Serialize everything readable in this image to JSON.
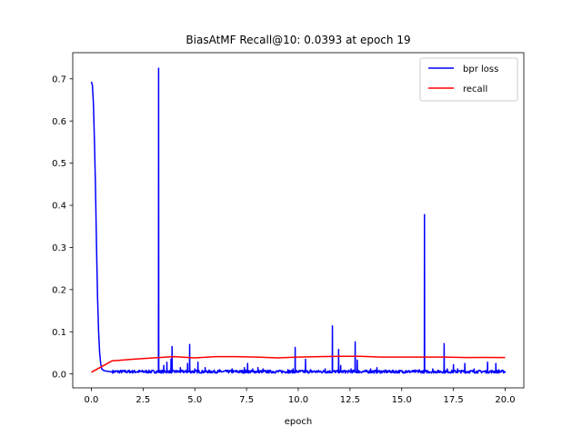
{
  "chart_data": {
    "type": "line",
    "title": "BiasAtMF Recall@10: 0.0393 at epoch 19",
    "xlabel": "epoch",
    "ylabel": "",
    "xlim": [
      -0.9,
      20.9
    ],
    "ylim": [
      -0.033,
      0.762
    ],
    "xticks": [
      0.0,
      2.5,
      5.0,
      7.5,
      10.0,
      12.5,
      15.0,
      17.5,
      20.0
    ],
    "xtick_labels": [
      "0.0",
      "2.5",
      "5.0",
      "7.5",
      "10.0",
      "12.5",
      "15.0",
      "17.5",
      "20.0"
    ],
    "yticks": [
      0.0,
      0.1,
      0.2,
      0.3,
      0.4,
      0.5,
      0.6,
      0.7
    ],
    "ytick_labels": [
      "0.0",
      "0.1",
      "0.2",
      "0.3",
      "0.4",
      "0.5",
      "0.6",
      "0.7"
    ],
    "grid": false,
    "legend_position": "top-right",
    "series": [
      {
        "name": "bpr loss",
        "color": "#0000ff",
        "baseline": 0.005,
        "x": [
          0.0,
          0.05,
          0.1,
          0.15,
          0.2,
          0.25,
          0.3,
          0.35,
          0.4,
          0.45,
          0.5,
          0.6,
          0.8,
          1.0
        ],
        "y": [
          0.693,
          0.685,
          0.64,
          0.55,
          0.44,
          0.3,
          0.18,
          0.1,
          0.05,
          0.025,
          0.012,
          0.008,
          0.006,
          0.005
        ],
        "spikes": [
          [
            3.25,
            0.725
          ],
          [
            3.5,
            0.02
          ],
          [
            3.65,
            0.028
          ],
          [
            3.85,
            0.035
          ],
          [
            3.9,
            0.065
          ],
          [
            4.3,
            0.015
          ],
          [
            4.65,
            0.025
          ],
          [
            4.75,
            0.07
          ],
          [
            5.0,
            0.012
          ],
          [
            5.15,
            0.028
          ],
          [
            5.5,
            0.015
          ],
          [
            6.2,
            0.01
          ],
          [
            6.8,
            0.012
          ],
          [
            7.4,
            0.015
          ],
          [
            7.55,
            0.025
          ],
          [
            7.8,
            0.012
          ],
          [
            8.05,
            0.015
          ],
          [
            8.3,
            0.012
          ],
          [
            9.5,
            0.01
          ],
          [
            9.75,
            0.012
          ],
          [
            9.85,
            0.063
          ],
          [
            10.35,
            0.035
          ],
          [
            10.6,
            0.01
          ],
          [
            11.3,
            0.012
          ],
          [
            11.65,
            0.114
          ],
          [
            11.95,
            0.058
          ],
          [
            12.05,
            0.02
          ],
          [
            12.55,
            0.012
          ],
          [
            12.75,
            0.076
          ],
          [
            12.85,
            0.033
          ],
          [
            13.5,
            0.012
          ],
          [
            13.8,
            0.015
          ],
          [
            14.4,
            0.008
          ],
          [
            15.2,
            0.008
          ],
          [
            15.85,
            0.01
          ],
          [
            16.1,
            0.378
          ],
          [
            16.5,
            0.012
          ],
          [
            17.05,
            0.072
          ],
          [
            17.2,
            0.012
          ],
          [
            17.5,
            0.022
          ],
          [
            17.7,
            0.012
          ],
          [
            18.05,
            0.025
          ],
          [
            18.5,
            0.012
          ],
          [
            19.15,
            0.028
          ],
          [
            19.55,
            0.025
          ],
          [
            19.7,
            0.01
          ]
        ]
      },
      {
        "name": "recall",
        "color": "#ff0000",
        "x": [
          0,
          1,
          2,
          3,
          4,
          5,
          6,
          7,
          8,
          9,
          10,
          11,
          12,
          13,
          14,
          15,
          16,
          17,
          18,
          19,
          20
        ],
        "y": [
          0.004,
          0.031,
          0.035,
          0.038,
          0.041,
          0.038,
          0.041,
          0.041,
          0.04,
          0.038,
          0.04,
          0.041,
          0.042,
          0.042,
          0.04,
          0.04,
          0.04,
          0.04,
          0.039,
          0.0393,
          0.039
        ]
      }
    ]
  }
}
